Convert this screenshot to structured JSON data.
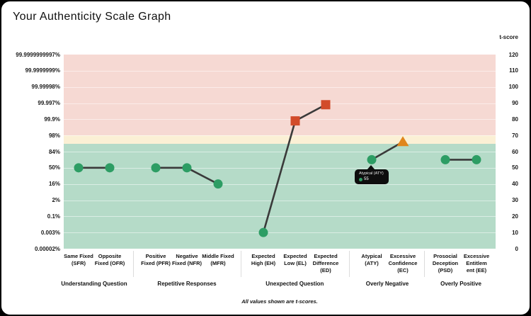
{
  "page": {
    "title": "Your Authenticity Scale Graph",
    "footer_note": "All values shown are t-scores."
  },
  "chart_data": {
    "type": "line",
    "title": "Your Authenticity Scale Graph",
    "note": "All values shown are t-scores.",
    "ylim": [
      0,
      120
    ],
    "grid": true,
    "right_axis": {
      "title": "t-score",
      "ticks": [
        120,
        110,
        100,
        90,
        80,
        70,
        60,
        50,
        40,
        30,
        20,
        10,
        0
      ]
    },
    "left_axis": {
      "ticks": [
        "99.9999999997%",
        "99.9999999%",
        "99.99998%",
        "99.997%",
        "99.9%",
        "98%",
        "84%",
        "50%",
        "16%",
        "2%",
        "0.1%",
        "0.003%",
        "0.00002%"
      ]
    },
    "zones": [
      {
        "name": "elevated",
        "from": 70,
        "to": 120,
        "color": "#f6d9d3"
      },
      {
        "name": "caution",
        "from": 65,
        "to": 70,
        "color": "#fbf0d5"
      },
      {
        "name": "normal",
        "from": 0,
        "to": 65,
        "color": "#b5dbc8"
      }
    ],
    "marker_colors": {
      "circle": "#2d9d64",
      "square": "#d24b2a",
      "triangle": "#e0861c"
    },
    "line_color": "#3a3a3a",
    "groups": [
      {
        "label": "Understanding Question",
        "points": [
          {
            "label": "Same Fixed (SFR)",
            "display": "Same Fixed\n(SFR)",
            "code": "SFR",
            "value": 50,
            "marker": "circle"
          },
          {
            "label": "Opposite Fixed (OFR)",
            "display": "Opposite\nFixed (OFR)",
            "code": "OFR",
            "value": 50,
            "marker": "circle"
          }
        ]
      },
      {
        "label": "Repetitive Responses",
        "points": [
          {
            "label": "Positive Fixed (PFR)",
            "display": "Positive\nFixed (PFR)",
            "code": "PFR",
            "value": 50,
            "marker": "circle"
          },
          {
            "label": "Negative Fixed (NFR)",
            "display": "Negative\nFixed (NFR)",
            "code": "NFR",
            "value": 50,
            "marker": "circle"
          },
          {
            "label": "Middle Fixed (MFR)",
            "display": "Middle Fixed\n(MFR)",
            "code": "MFR",
            "value": 40,
            "marker": "circle"
          }
        ]
      },
      {
        "label": "Unexpected Question",
        "points": [
          {
            "label": "Expected High (EH)",
            "display": "Expected\nHigh (EH)",
            "code": "EH",
            "value": 10,
            "marker": "circle"
          },
          {
            "label": "Expected Low (EL)",
            "display": "Expected\nLow (EL)",
            "code": "EL",
            "value": 79,
            "marker": "square"
          },
          {
            "label": "Expected Difference (ED)",
            "display": "Expected\nDifference\n(ED)",
            "code": "ED",
            "value": 89,
            "marker": "square"
          }
        ]
      },
      {
        "label": "Overly Negative",
        "points": [
          {
            "label": "Atypical (ATY)",
            "display": "Atypical\n(ATY)",
            "code": "ATY",
            "value": 55,
            "marker": "circle"
          },
          {
            "label": "Excessive Confidence (EC)",
            "display": "Excessive\nConfidence\n(EC)",
            "code": "EC",
            "value": 66,
            "marker": "triangle"
          }
        ]
      },
      {
        "label": "Overly Positive",
        "points": [
          {
            "label": "Prosocial Deception (PSD)",
            "display": "Prosocial\nDeception\n(PSD)",
            "code": "PSD",
            "value": 55,
            "marker": "circle"
          },
          {
            "label": "Excessive Entitlement (EE)",
            "display": "Excessive\nEntitlem\nent (EE)",
            "code": "EE",
            "value": 55,
            "marker": "circle"
          }
        ]
      }
    ],
    "tooltip": {
      "title": "Atypical (ATY)",
      "value": "55",
      "dot_color": "#2d9d64"
    }
  }
}
